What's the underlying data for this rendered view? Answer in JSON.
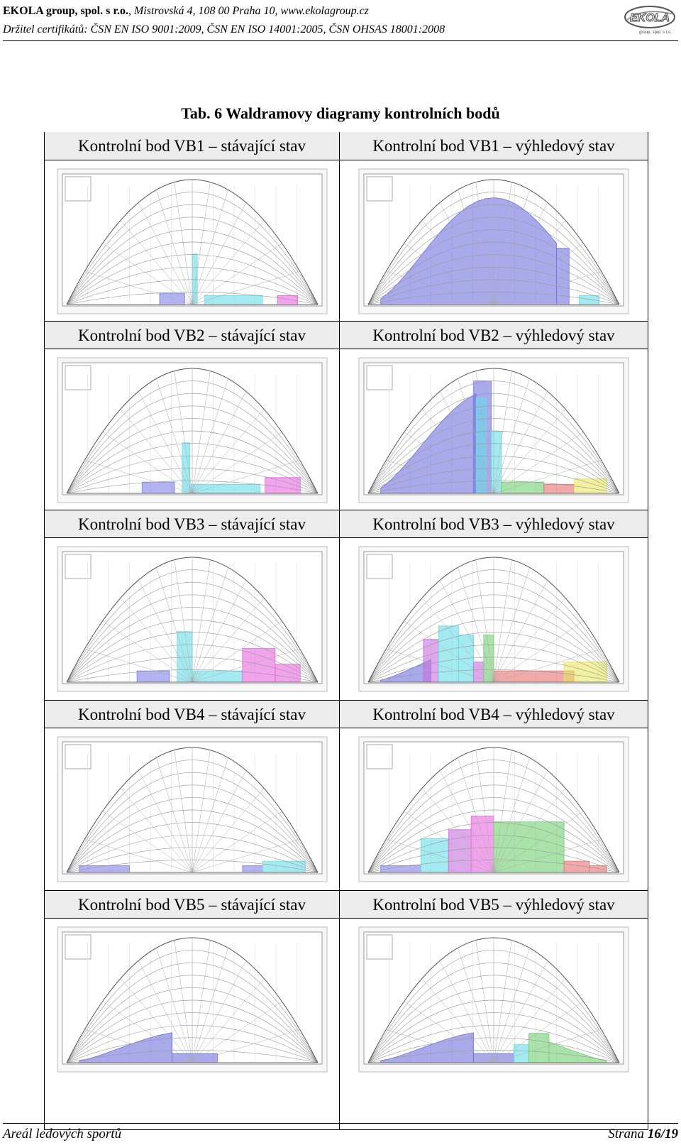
{
  "header": {
    "company": "EKOLA group, spol. s r.o.",
    "address": ", Mistrovská 4, 108 00 Praha 10, www.ekolagroup.cz",
    "certificates": "Držitel certifikátů: ČSN EN ISO 9001:2009, ČSN EN ISO 14001:2005, ČSN OHSAS 18001:2008",
    "logo_text": "EKOLA",
    "logo_subtext": "group, spol. s r.o."
  },
  "table_title": "Tab. 6 Waldramovy diagramy kontrolních bodů",
  "cells": [
    {
      "label": "Kontrolní bod VB1 – stávající stav",
      "fills": [
        {
          "a": 0.37,
          "b": 0.47,
          "h": 0.1,
          "c": "#8080e8"
        },
        {
          "a": 0.5,
          "b": 0.52,
          "h": 0.45,
          "c": "#66dde8"
        },
        {
          "a": 0.55,
          "b": 0.78,
          "h": 0.08,
          "c": "#66dde8"
        },
        {
          "a": 0.84,
          "b": 0.92,
          "h": 0.08,
          "c": "#e866e0"
        }
      ]
    },
    {
      "label": "Kontrolní bod VB1 – výhledový stav",
      "fills": [
        {
          "a": 0.05,
          "b": 0.75,
          "h": 0.95,
          "c": "#7070e0",
          "curve": true
        },
        {
          "a": 0.75,
          "b": 0.8,
          "h": 0.5,
          "c": "#7070e0"
        },
        {
          "a": 0.84,
          "b": 0.92,
          "h": 0.08,
          "c": "#66dde8"
        }
      ]
    },
    {
      "label": "Kontrolní bod VB2 – stávající stav",
      "fills": [
        {
          "a": 0.3,
          "b": 0.43,
          "h": 0.1,
          "c": "#8080e8"
        },
        {
          "a": 0.46,
          "b": 0.49,
          "h": 0.45,
          "c": "#66dde8"
        },
        {
          "a": 0.49,
          "b": 0.77,
          "h": 0.08,
          "c": "#66dde8"
        },
        {
          "a": 0.79,
          "b": 0.93,
          "h": 0.14,
          "c": "#e866e0"
        }
      ]
    },
    {
      "label": "Kontrolní bod VB2 – výhledový stav",
      "fills": [
        {
          "a": 0.05,
          "b": 0.43,
          "h": 0.92,
          "c": "#7070e0",
          "curve": true
        },
        {
          "a": 0.42,
          "b": 0.49,
          "h": 1.0,
          "c": "#7070e0"
        },
        {
          "a": 0.43,
          "b": 0.47,
          "h": 0.85,
          "c": "#66dde8"
        },
        {
          "a": 0.49,
          "b": 0.53,
          "h": 0.55,
          "c": "#66dde8"
        },
        {
          "a": 0.53,
          "b": 0.7,
          "h": 0.1,
          "c": "#70d070"
        },
        {
          "a": 0.7,
          "b": 0.82,
          "h": 0.08,
          "c": "#e87070"
        },
        {
          "a": 0.82,
          "b": 0.95,
          "h": 0.13,
          "c": "#e8e860"
        }
      ]
    },
    {
      "label": "Kontrolní bod VB3 – stávající stav",
      "fills": [
        {
          "a": 0.28,
          "b": 0.41,
          "h": 0.1,
          "c": "#8080e8"
        },
        {
          "a": 0.44,
          "b": 0.5,
          "h": 0.45,
          "c": "#66dde8"
        },
        {
          "a": 0.5,
          "b": 0.7,
          "h": 0.1,
          "c": "#66dde8"
        },
        {
          "a": 0.7,
          "b": 0.83,
          "h": 0.3,
          "c": "#e866e0"
        },
        {
          "a": 0.83,
          "b": 0.93,
          "h": 0.16,
          "c": "#e866e0"
        }
      ]
    },
    {
      "label": "Kontrolní bod VB3 – výhledový stav",
      "fills": [
        {
          "a": 0.05,
          "b": 0.25,
          "h": 0.35,
          "c": "#7070e0",
          "curve": true
        },
        {
          "a": 0.22,
          "b": 0.28,
          "h": 0.38,
          "c": "#c870e0"
        },
        {
          "a": 0.28,
          "b": 0.36,
          "h": 0.5,
          "c": "#66dde8"
        },
        {
          "a": 0.36,
          "b": 0.42,
          "h": 0.42,
          "c": "#66dde8"
        },
        {
          "a": 0.42,
          "b": 0.46,
          "h": 0.18,
          "c": "#c870e0"
        },
        {
          "a": 0.46,
          "b": 0.5,
          "h": 0.42,
          "c": "#70d070"
        },
        {
          "a": 0.5,
          "b": 0.82,
          "h": 0.1,
          "c": "#e87070"
        },
        {
          "a": 0.78,
          "b": 0.95,
          "h": 0.18,
          "c": "#e8e860"
        }
      ]
    },
    {
      "label": "Kontrolní bod VB4 – stávající stav",
      "fills": [
        {
          "a": 0.05,
          "b": 0.25,
          "h": 0.06,
          "c": "#8080e8"
        },
        {
          "a": 0.7,
          "b": 0.78,
          "h": 0.06,
          "c": "#8080e8"
        },
        {
          "a": 0.78,
          "b": 0.95,
          "h": 0.1,
          "c": "#66dde8"
        }
      ]
    },
    {
      "label": "Kontrolní bod VB4 – výhledový stav",
      "fills": [
        {
          "a": 0.05,
          "b": 0.21,
          "h": 0.06,
          "c": "#8080e8"
        },
        {
          "a": 0.21,
          "b": 0.32,
          "h": 0.3,
          "c": "#66dde8"
        },
        {
          "a": 0.32,
          "b": 0.41,
          "h": 0.38,
          "c": "#c870e0"
        },
        {
          "a": 0.41,
          "b": 0.5,
          "h": 0.5,
          "c": "#e866e0"
        },
        {
          "a": 0.5,
          "b": 0.78,
          "h": 0.45,
          "c": "#70d070"
        },
        {
          "a": 0.78,
          "b": 0.88,
          "h": 0.1,
          "c": "#e87070"
        },
        {
          "a": 0.88,
          "b": 0.95,
          "h": 0.06,
          "c": "#e87070"
        }
      ]
    },
    {
      "label": "Kontrolní bod VB5 – stávající stav",
      "fills": [
        {
          "a": 0.05,
          "b": 0.42,
          "h": 0.28,
          "c": "#7070e0",
          "curve": true
        },
        {
          "a": 0.42,
          "b": 0.6,
          "h": 0.08,
          "c": "#7070e0"
        }
      ]
    },
    {
      "label": "Kontrolní bod VB5 – výhledový stav",
      "fills": [
        {
          "a": 0.05,
          "b": 0.42,
          "h": 0.28,
          "c": "#7070e0",
          "curve": true
        },
        {
          "a": 0.42,
          "b": 0.58,
          "h": 0.08,
          "c": "#7070e0"
        },
        {
          "a": 0.58,
          "b": 0.64,
          "h": 0.16,
          "c": "#66dde8"
        },
        {
          "a": 0.64,
          "b": 0.72,
          "h": 0.26,
          "c": "#70d070"
        },
        {
          "a": 0.72,
          "b": 0.95,
          "h": 0.28,
          "c": "#70d070",
          "curve": true
        }
      ]
    }
  ],
  "footer": {
    "left": "Areál ledových sportů",
    "page_prefix": "Strana ",
    "page": "16/19"
  }
}
